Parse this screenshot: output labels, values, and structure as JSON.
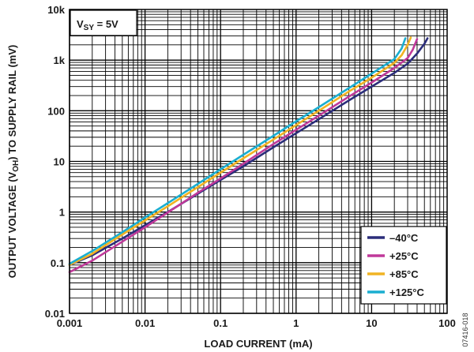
{
  "chart_data": {
    "type": "line",
    "x_scale": "log",
    "y_scale": "log",
    "xlabel": "LOAD CURRENT (mA)",
    "ylabel_parts": [
      "OUTPUT VOLTAGE (V",
      "OH",
      ") TO SUPPLY RAIL (mV)"
    ],
    "xlim": [
      0.001,
      100
    ],
    "ylim": [
      0.01,
      10000
    ],
    "x_ticks": [
      0.001,
      0.01,
      0.1,
      1,
      10,
      100
    ],
    "x_tick_labels": [
      "0.001",
      "0.01",
      "0.1",
      "1",
      "10",
      "100"
    ],
    "y_ticks": [
      0.01,
      0.1,
      1,
      10,
      100,
      1000,
      10000
    ],
    "y_tick_labels": [
      "0.01",
      "0.1",
      "1",
      "10",
      "100",
      "1k",
      "10k"
    ],
    "grid": true,
    "legend_position": "bottom-right",
    "annotation_parts": [
      "V",
      "SY",
      " = 5V"
    ],
    "figure_id": "07416-018",
    "series": [
      {
        "name": "–40°C",
        "color": "#2b2d7a",
        "x": [
          0.001,
          0.002,
          0.005,
          0.01,
          0.02,
          0.05,
          0.1,
          0.2,
          0.5,
          1,
          2,
          5,
          10,
          20,
          30,
          40,
          50,
          55
        ],
        "y": [
          0.09,
          0.14,
          0.3,
          0.55,
          1.0,
          2.3,
          4.3,
          8.0,
          19,
          36,
          68,
          160,
          300,
          560,
          850,
          1350,
          2100,
          2700
        ]
      },
      {
        "name": "+25°C",
        "color": "#c0399a",
        "x": [
          0.001,
          0.002,
          0.005,
          0.01,
          0.02,
          0.05,
          0.1,
          0.2,
          0.5,
          1,
          2,
          5,
          10,
          20,
          30,
          35,
          40
        ],
        "y": [
          0.065,
          0.11,
          0.26,
          0.5,
          0.98,
          2.4,
          4.6,
          9.0,
          22,
          42,
          80,
          190,
          360,
          700,
          1100,
          1600,
          2600
        ]
      },
      {
        "name": "+85°C",
        "color": "#f0b323",
        "x": [
          0.001,
          0.002,
          0.005,
          0.01,
          0.02,
          0.05,
          0.1,
          0.2,
          0.5,
          1,
          2,
          5,
          10,
          20,
          25,
          30,
          33
        ],
        "y": [
          0.09,
          0.15,
          0.36,
          0.68,
          1.3,
          3.1,
          6.0,
          11.5,
          27,
          52,
          100,
          240,
          450,
          880,
          1250,
          2000,
          2800
        ]
      },
      {
        "name": "+125°C",
        "color": "#1aaed0",
        "x": [
          0.001,
          0.002,
          0.005,
          0.01,
          0.02,
          0.05,
          0.1,
          0.2,
          0.5,
          1,
          2,
          5,
          10,
          20,
          25,
          28
        ],
        "y": [
          0.095,
          0.17,
          0.4,
          0.78,
          1.5,
          3.6,
          7.0,
          13.5,
          32,
          62,
          118,
          280,
          540,
          1050,
          1700,
          2700
        ]
      }
    ]
  }
}
